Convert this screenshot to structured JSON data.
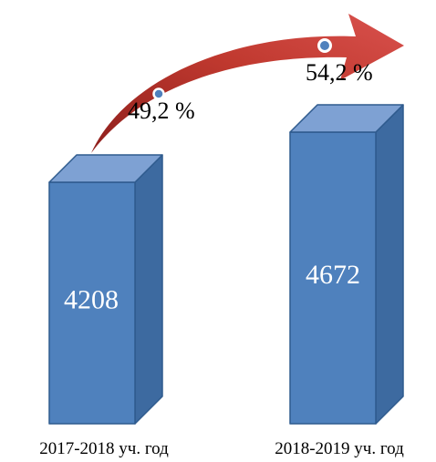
{
  "chart_data": {
    "type": "bar",
    "style": "3d-column",
    "categories": [
      "2017-2018 уч. год",
      "2018-2019 уч. год"
    ],
    "values": [
      4208,
      4672
    ],
    "value_labels": [
      "4208",
      "4672"
    ],
    "annotations": [
      {
        "category": "2017-2018 уч. год",
        "text": "49,2 %",
        "value": 49.2
      },
      {
        "category": "2018-2019 уч. год",
        "text": "54,2 %",
        "value": 54.2
      }
    ],
    "trend_arrow": "rising",
    "colors": {
      "bar_front": "#4f81bd",
      "bar_top": "#7ea1d3",
      "bar_side": "#3d6aa0",
      "bar_edge": "#2f5b8e",
      "arrow_dark": "#8e1f1c",
      "arrow_light": "#d9514d",
      "marker_fill": "#4f81bd",
      "marker_ring": "#ffffff",
      "label_text": "#ffffff",
      "axis_text": "#000000"
    }
  }
}
